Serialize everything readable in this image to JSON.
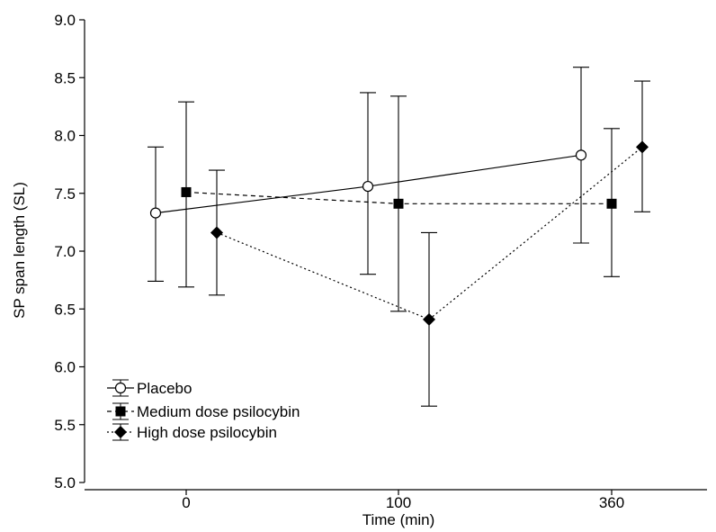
{
  "chart_data": {
    "type": "line",
    "title": "",
    "xlabel": "Time (min)",
    "ylabel": "SP span length (SL)",
    "categories": [
      "0",
      "100",
      "360"
    ],
    "ylim": [
      5.0,
      9.0
    ],
    "yticks": [
      "5.0",
      "5.5",
      "6.0",
      "6.5",
      "7.0",
      "7.5",
      "8.0",
      "8.5",
      "9.0"
    ],
    "grid": false,
    "legend_position": "bottom-left",
    "series": [
      {
        "name": "Placebo",
        "marker": "circle-open",
        "line_style": "solid",
        "values": [
          7.33,
          7.56,
          7.83
        ],
        "error_low": [
          6.74,
          6.8,
          7.07
        ],
        "error_high": [
          7.9,
          8.37,
          8.59
        ]
      },
      {
        "name": "Medium dose psilocybin",
        "marker": "square-filled",
        "line_style": "dashed",
        "values": [
          7.51,
          7.41,
          7.41
        ],
        "error_low": [
          6.69,
          6.48,
          6.78
        ],
        "error_high": [
          8.29,
          8.34,
          8.06
        ]
      },
      {
        "name": "High dose psilocybin",
        "marker": "diamond-filled",
        "line_style": "dotted",
        "values": [
          7.16,
          6.41,
          7.9
        ],
        "error_low": [
          6.62,
          5.66,
          7.34
        ],
        "error_high": [
          7.7,
          7.16,
          8.47
        ]
      }
    ]
  }
}
